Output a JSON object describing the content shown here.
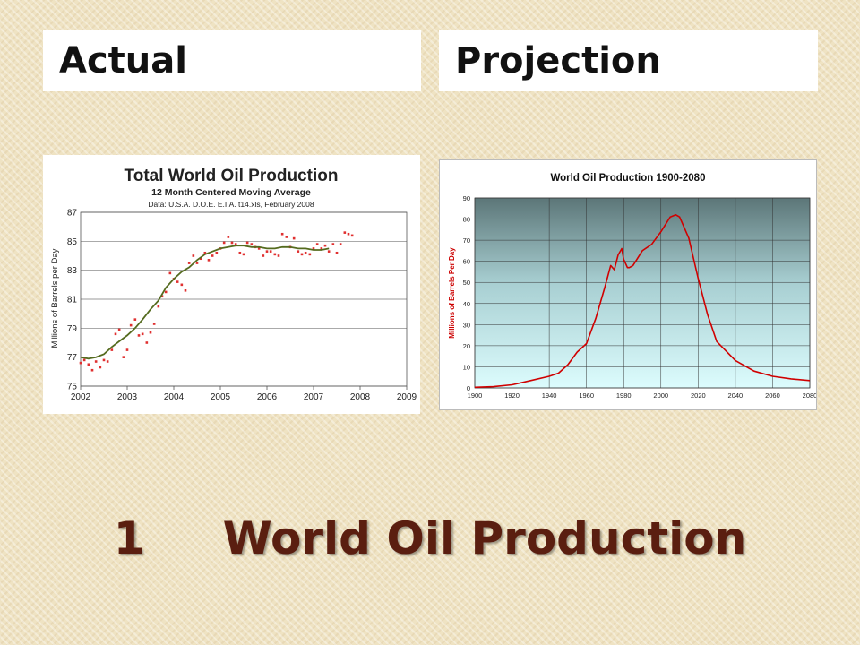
{
  "headers": {
    "left": "Actual",
    "right": "Projection"
  },
  "slide_title": "1     World Oil Production",
  "colors": {
    "title": "#5a1e10",
    "points": "#e03030",
    "avg_line": "#556b1f",
    "projection_line": "#d00000"
  },
  "chart_data": [
    {
      "type": "scatter",
      "title": "Total World Oil Production",
      "subtitle": "12 Month Centered Moving Average",
      "source_note": "Data: U.S.A. D.O.E. E.I.A. t14.xls, February 2008",
      "xlabel": "",
      "ylabel": "Millions of Barrels per Day",
      "xlim": [
        2002,
        2009
      ],
      "ylim": [
        75,
        87
      ],
      "x_ticks": [
        "2002",
        "2003",
        "2004",
        "2005",
        "2006",
        "2007",
        "2008",
        "2009"
      ],
      "y_ticks": [
        "75",
        "77",
        "79",
        "81",
        "83",
        "85",
        "87"
      ],
      "grid": "horizontal",
      "series": [
        {
          "kind": "points",
          "x": [
            2002.0,
            2002.08,
            2002.17,
            2002.25,
            2002.33,
            2002.42,
            2002.5,
            2002.58,
            2002.67,
            2002.75,
            2002.83,
            2002.92,
            2003.0,
            2003.08,
            2003.17,
            2003.25,
            2003.33,
            2003.42,
            2003.5,
            2003.58,
            2003.67,
            2003.75,
            2003.83,
            2003.92,
            2004.0,
            2004.08,
            2004.17,
            2004.25,
            2004.33,
            2004.42,
            2004.5,
            2004.58,
            2004.67,
            2004.75,
            2004.83,
            2004.92,
            2005.0,
            2005.08,
            2005.17,
            2005.25,
            2005.33,
            2005.42,
            2005.5,
            2005.58,
            2005.67,
            2005.75,
            2005.83,
            2005.92,
            2006.0,
            2006.08,
            2006.17,
            2006.25,
            2006.33,
            2006.42,
            2006.5,
            2006.58,
            2006.67,
            2006.75,
            2006.83,
            2006.92,
            2007.0,
            2007.08,
            2007.17,
            2007.25,
            2007.33,
            2007.42,
            2007.5,
            2007.58,
            2007.67,
            2007.75,
            2007.83
          ],
          "y": [
            76.6,
            76.8,
            76.5,
            76.1,
            76.7,
            76.3,
            76.8,
            76.7,
            77.5,
            78.6,
            78.9,
            77.0,
            77.5,
            79.2,
            79.6,
            78.5,
            78.6,
            78.0,
            78.7,
            79.3,
            80.5,
            81.2,
            81.5,
            82.8,
            82.4,
            82.2,
            82.0,
            81.6,
            83.5,
            84.0,
            83.5,
            83.8,
            84.2,
            83.7,
            84.0,
            84.2,
            84.5,
            84.9,
            85.3,
            84.9,
            84.8,
            84.2,
            84.1,
            84.9,
            84.8,
            84.6,
            84.5,
            84.0,
            84.3,
            84.3,
            84.1,
            84.0,
            85.5,
            85.3,
            84.6,
            85.2,
            84.3,
            84.1,
            84.2,
            84.1,
            84.5,
            84.8,
            84.5,
            84.7,
            84.3,
            84.8,
            84.2,
            84.8,
            85.6,
            85.5,
            85.4
          ]
        },
        {
          "kind": "line",
          "name": "12 Month Centered Moving Average",
          "x": [
            2002.0,
            2002.17,
            2002.33,
            2002.5,
            2002.67,
            2002.83,
            2003.0,
            2003.17,
            2003.33,
            2003.5,
            2003.67,
            2003.83,
            2004.0,
            2004.17,
            2004.33,
            2004.5,
            2004.67,
            2004.83,
            2005.0,
            2005.17,
            2005.33,
            2005.5,
            2005.67,
            2005.83,
            2006.0,
            2006.17,
            2006.33,
            2006.5,
            2006.67,
            2006.83,
            2007.0,
            2007.17,
            2007.33
          ],
          "y": [
            77.0,
            76.9,
            77.0,
            77.2,
            77.7,
            78.1,
            78.5,
            79.0,
            79.6,
            80.3,
            80.9,
            81.8,
            82.4,
            82.9,
            83.2,
            83.7,
            84.1,
            84.3,
            84.5,
            84.6,
            84.7,
            84.7,
            84.6,
            84.6,
            84.5,
            84.5,
            84.6,
            84.6,
            84.5,
            84.5,
            84.4,
            84.4,
            84.5
          ]
        }
      ]
    },
    {
      "type": "line",
      "title": "World Oil Production 1900-2080",
      "xlabel": "",
      "ylabel": "Millions of Barrels Per Day",
      "xlim": [
        1900,
        2080
      ],
      "ylim": [
        0,
        90
      ],
      "x_ticks": [
        "1900",
        "1920",
        "1940",
        "1960",
        "1980",
        "2000",
        "2020",
        "2040",
        "2060",
        "2080"
      ],
      "y_ticks": [
        "0",
        "10",
        "20",
        "30",
        "40",
        "50",
        "60",
        "70",
        "80",
        "90"
      ],
      "grid": "both",
      "series": [
        {
          "x": [
            1900,
            1910,
            1920,
            1930,
            1940,
            1945,
            1950,
            1955,
            1960,
            1965,
            1970,
            1973,
            1975,
            1977,
            1979,
            1980,
            1982,
            1983,
            1985,
            1990,
            1995,
            2000,
            2005,
            2008,
            2010,
            2015,
            2020,
            2025,
            2030,
            2040,
            2050,
            2060,
            2070,
            2080
          ],
          "y": [
            0.3,
            0.6,
            1.5,
            3.5,
            5.5,
            7,
            11,
            17,
            21,
            33,
            48,
            58,
            56,
            63,
            66,
            61,
            57,
            57,
            58,
            65,
            68,
            74,
            81,
            82,
            81,
            71,
            52,
            35,
            22,
            13,
            8,
            5.5,
            4.3,
            3.5
          ]
        }
      ]
    }
  ]
}
